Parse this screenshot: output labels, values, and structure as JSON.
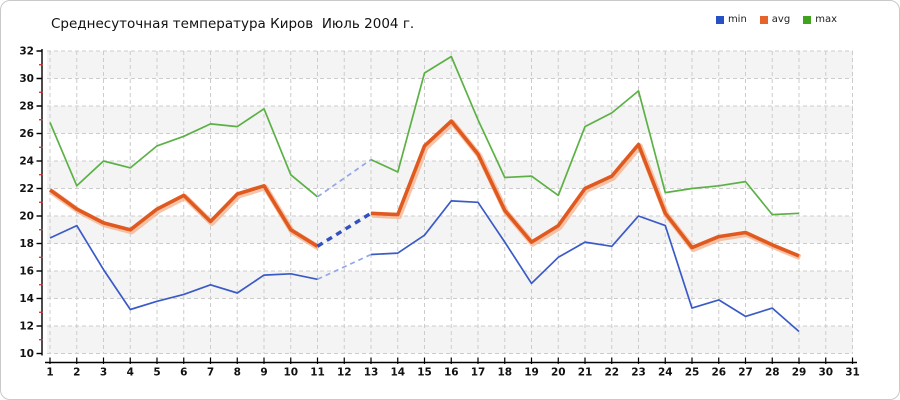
{
  "chart_data": {
    "type": "line",
    "title": "Среднесуточная температура Киров  Июль 2004 г.",
    "x": [
      1,
      2,
      3,
      4,
      5,
      6,
      7,
      8,
      9,
      10,
      11,
      12,
      13,
      14,
      15,
      16,
      17,
      18,
      19,
      20,
      21,
      22,
      23,
      24,
      25,
      26,
      27,
      28,
      29,
      30,
      31
    ],
    "xlabel": "",
    "ylabel": "",
    "ylim": [
      10,
      32
    ],
    "ytick_step": 2,
    "grid": "dashed gray, vertical per day and horizontal per 2 degrees",
    "background_bands": "alternating 2-degree horizontal bands starting gray at 32-30",
    "missing_days": [
      12
    ],
    "missing_note": "day 12 has no data; gap bridged with dashed blue interpolation segments",
    "legend_position": "top-right",
    "series": [
      {
        "name": "min",
        "color": "#3a5bc7",
        "swatch_color": "#2750c8",
        "width": 1.7,
        "gap_color": "#92a7e8",
        "gap_width": 1.7,
        "gap_dash": "5 4",
        "values": [
          18.4,
          19.3,
          16.1,
          13.2,
          13.8,
          14.3,
          15.0,
          14.4,
          15.7,
          15.8,
          15.4,
          null,
          17.2,
          17.3,
          18.6,
          21.1,
          21.0,
          18.1,
          15.1,
          17.0,
          18.1,
          17.8,
          20.0,
          19.3,
          13.3,
          13.9,
          12.7,
          13.3,
          11.6,
          null,
          null
        ]
      },
      {
        "name": "avg",
        "color": "#e05a20",
        "swatch_color": "#e8632c",
        "width": 3.6,
        "halo_color": "#f4b08a",
        "gap_color": "#3350c0",
        "gap_width": 3.4,
        "gap_dash": "6 5",
        "values": [
          21.9,
          20.5,
          19.5,
          19.0,
          20.5,
          21.5,
          19.6,
          21.6,
          22.2,
          19.0,
          17.8,
          null,
          20.2,
          20.1,
          25.1,
          26.9,
          24.5,
          20.4,
          18.1,
          19.3,
          22.0,
          22.9,
          25.2,
          20.2,
          17.7,
          18.5,
          18.8,
          17.9,
          17.1,
          null,
          null
        ]
      },
      {
        "name": "max",
        "color": "#5cb146",
        "swatch_color": "#3fa31d",
        "width": 1.7,
        "gap_color": "#92a7e8",
        "gap_width": 1.7,
        "gap_dash": "5 4",
        "values": [
          26.8,
          22.2,
          24.0,
          23.5,
          25.1,
          25.8,
          26.7,
          26.5,
          27.8,
          23.0,
          21.4,
          null,
          24.1,
          23.2,
          30.4,
          31.6,
          27.0,
          22.8,
          22.9,
          21.5,
          26.5,
          27.5,
          29.1,
          21.7,
          22.0,
          22.2,
          22.5,
          20.1,
          20.2,
          null,
          null
        ]
      }
    ],
    "style": {
      "band_color": "#f4f4f4",
      "grid_color": "#cccccc",
      "axis_color": "#000000",
      "minor_tick_color": "#cc2222",
      "tick_label_color": "#111111"
    }
  },
  "legend": {
    "items": [
      {
        "label": "min"
      },
      {
        "label": "avg"
      },
      {
        "label": "max"
      }
    ]
  }
}
